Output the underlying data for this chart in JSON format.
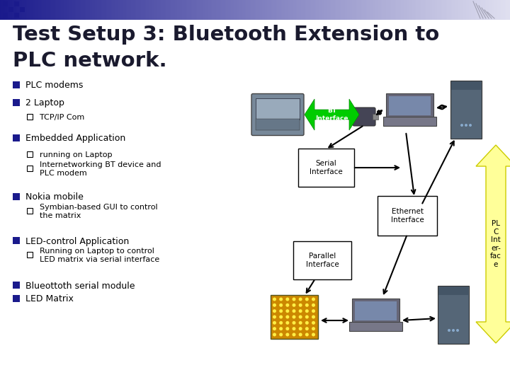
{
  "title_line1": "Test Setup 3: Bluetooth Extension to",
  "title_line2": "PLC network.",
  "title_color": "#1a1a2e",
  "title_fontsize": 20,
  "bg_color": "#ffffff",
  "header_gradient_left": "#1a1a8c",
  "header_gradient_right": "#ffffff",
  "bullet_color": "#1a1a8c",
  "text_color": "#000000",
  "bullets": [
    {
      "level": 1,
      "text": "PLC modems"
    },
    {
      "level": 1,
      "text": "2 Laptop"
    },
    {
      "level": 2,
      "text": "TCP/IP Com"
    },
    {
      "level": 1,
      "text": "Embedded Application"
    },
    {
      "level": 2,
      "text": "running on Laptop"
    },
    {
      "level": 2,
      "text": "Internetworking BT device and\nPLC modem"
    },
    {
      "level": 1,
      "text": "Nokia mobile"
    },
    {
      "level": 2,
      "text": "Symbian-based GUI to control\nthe matrix"
    },
    {
      "level": 1,
      "text": "LED-control Application"
    },
    {
      "level": 2,
      "text": "Running on Laptop to control\nLED matrix via serial interface"
    },
    {
      "level": 1,
      "text": "Blueottoth serial module"
    },
    {
      "level": 1,
      "text": "LED Matrix"
    }
  ]
}
